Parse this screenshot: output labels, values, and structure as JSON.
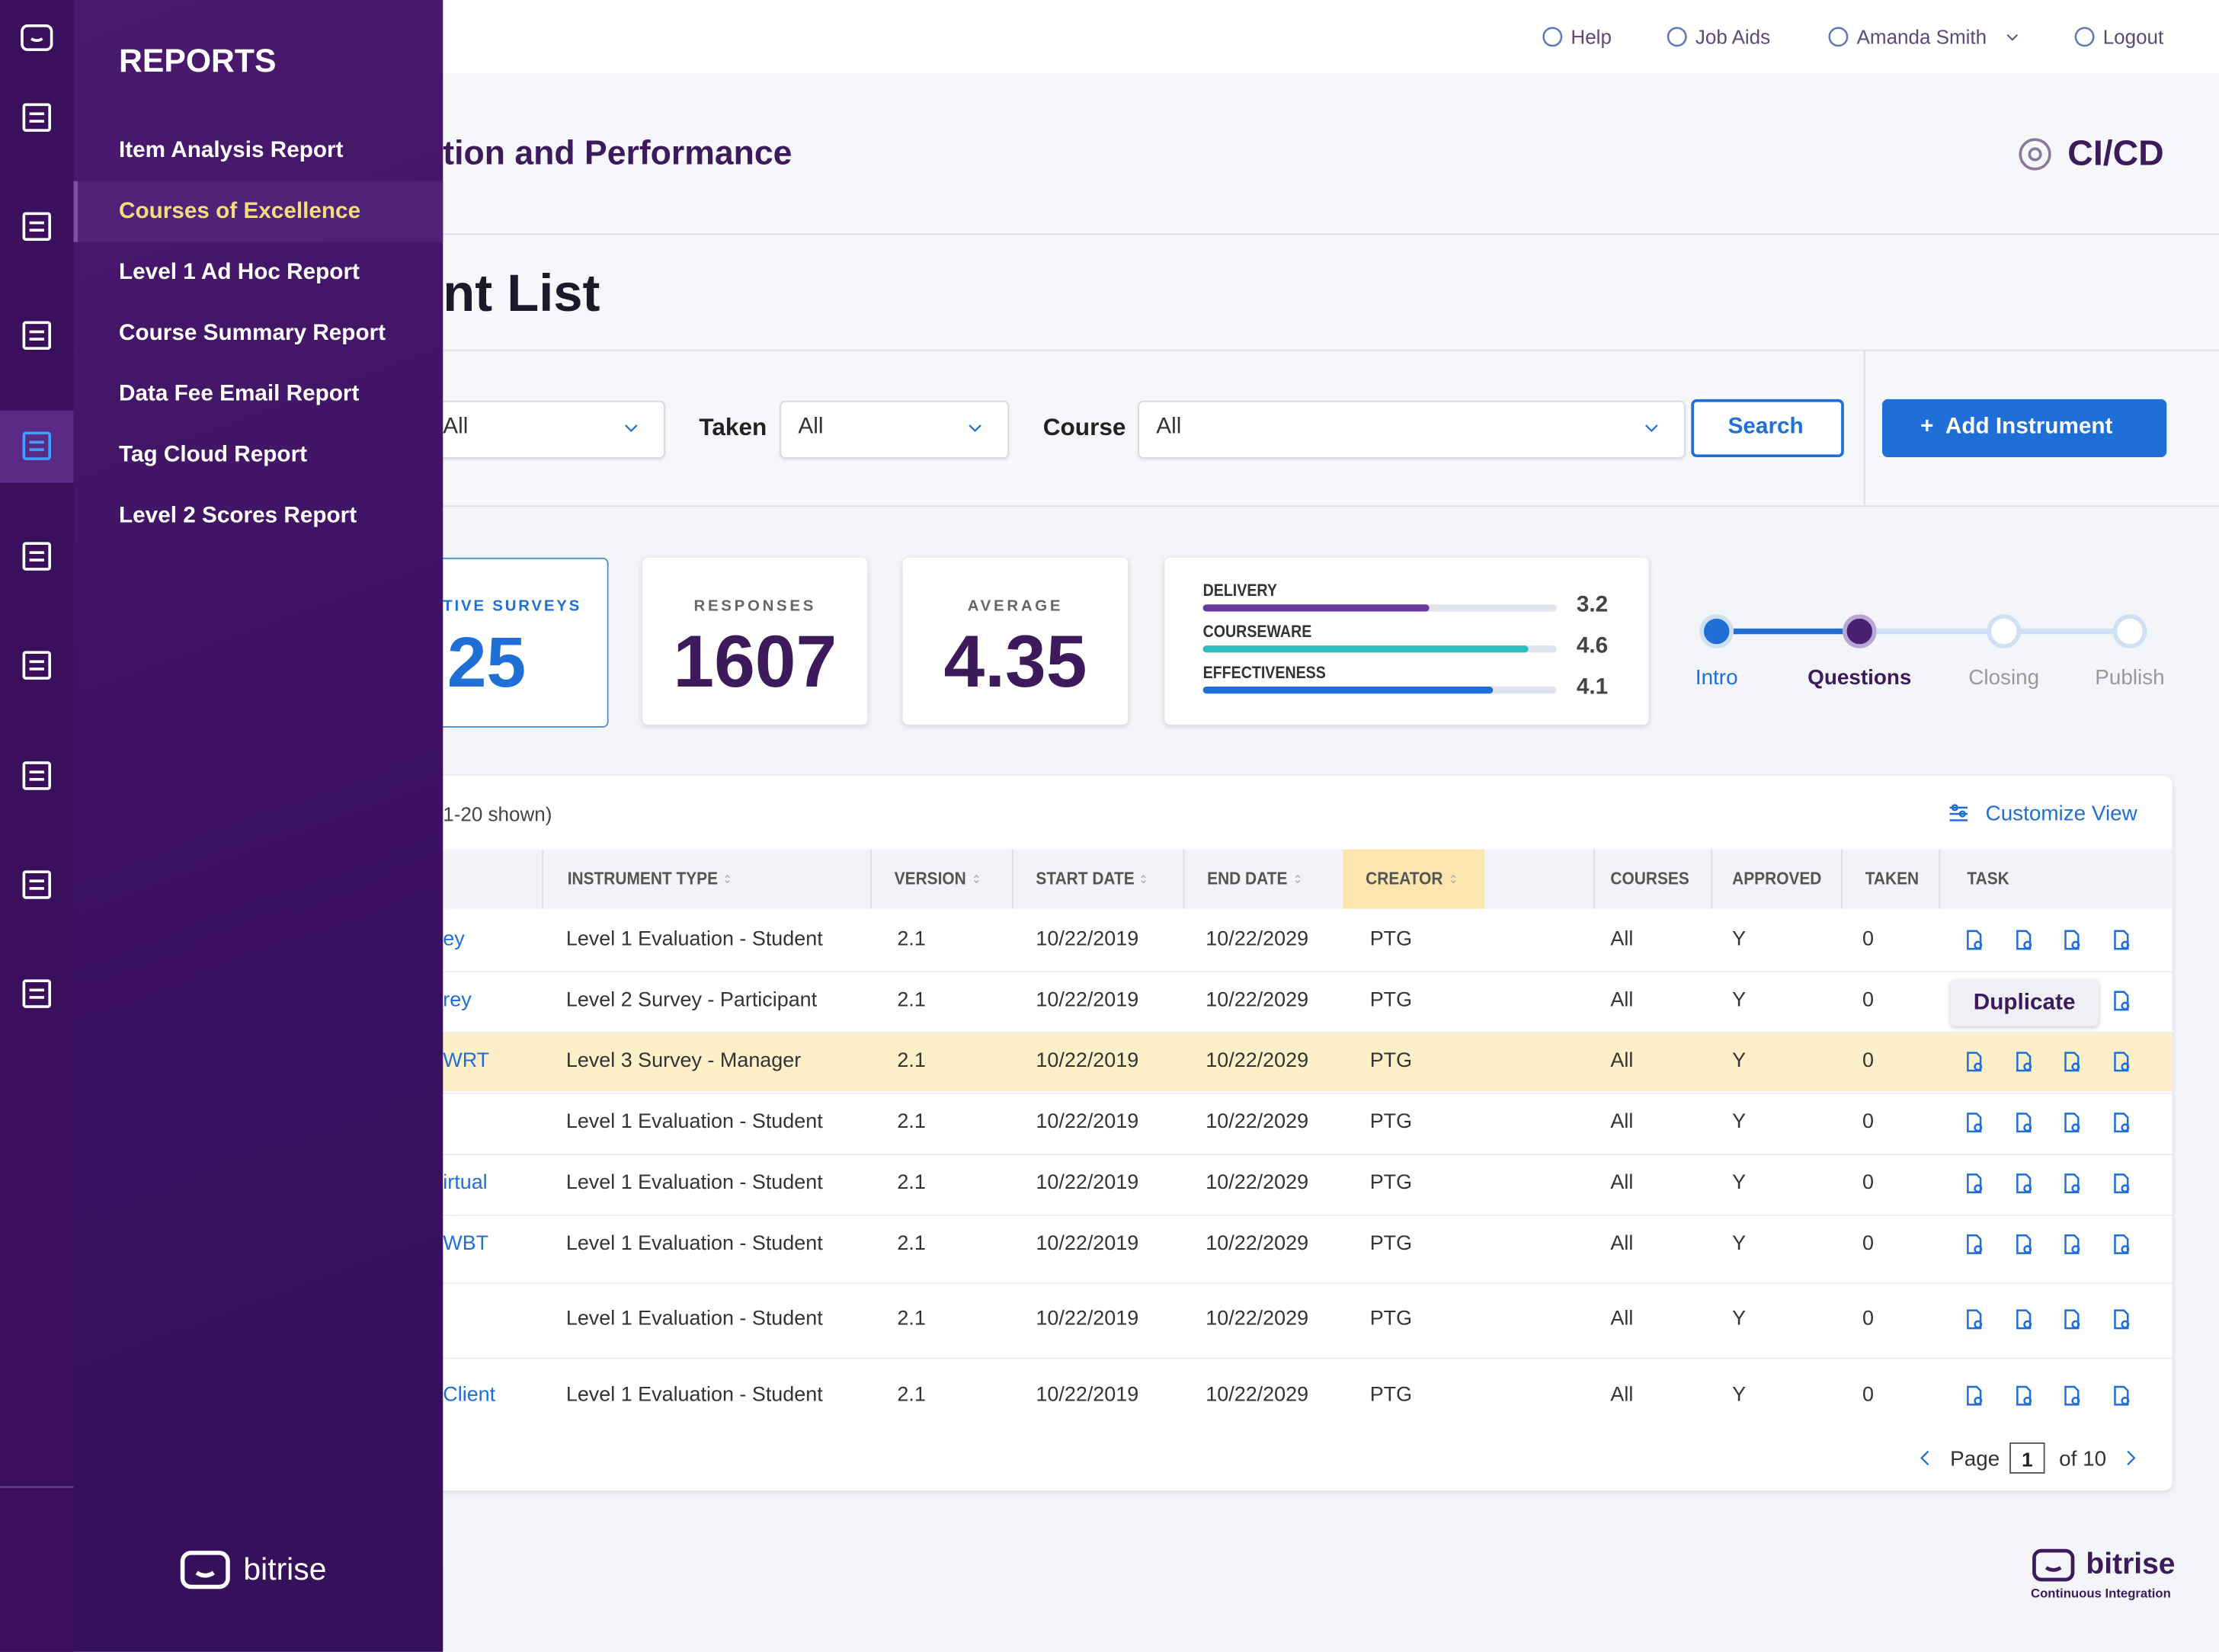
{
  "topbar": {
    "help": "Help",
    "job_aids": "Job Aids",
    "user": "Amanda Smith",
    "logout": "Logout"
  },
  "header": {
    "title": "tion and Performance",
    "brand": "CI/CD"
  },
  "page_title": "nt List",
  "filters": {
    "first_value": "All",
    "taken_label": "Taken",
    "taken_value": "All",
    "course_label": "Course",
    "course_value": "All",
    "search": "Search",
    "add": "+  Add Instrument"
  },
  "stats": {
    "active_label": "TIVE SURVEYS",
    "active_value": "25",
    "responses_label": "RESPONSES",
    "responses_value": "1607",
    "average_label": "AVERAGE",
    "average_value": "4.35"
  },
  "ratings": [
    {
      "name": "DELIVERY",
      "value": 3.2,
      "color": "#6a3a9c"
    },
    {
      "name": "COURSEWARE",
      "value": 4.6,
      "color": "#2bbfc0"
    },
    {
      "name": "EFFECTIVENESS",
      "value": 4.1,
      "color": "#1f6fd6"
    }
  ],
  "stepper": [
    "Intro",
    "Questions",
    "Closing",
    "Publish"
  ],
  "table": {
    "shown": "1-20 shown)",
    "customize": "Customize View",
    "columns": [
      "INSTRUMENT TYPE",
      "VERSION",
      "START DATE",
      "END DATE",
      "CREATOR",
      "COURSES",
      "APPROVED",
      "TAKEN",
      "TASK"
    ],
    "rows": [
      [
        "ey",
        "Level 1 Evaluation - Student",
        "2.1",
        "10/22/2019",
        "10/22/2029",
        "PTG",
        "All",
        "Y",
        "0"
      ],
      [
        "rey",
        "Level 2 Survey - Participant",
        "2.1",
        "10/22/2019",
        "10/22/2029",
        "PTG",
        "All",
        "Y",
        "0"
      ],
      [
        "WRT",
        "Level 3 Survey - Manager",
        "2.1",
        "10/22/2019",
        "10/22/2029",
        "PTG",
        "All",
        "Y",
        "0"
      ],
      [
        "",
        "Level 1 Evaluation - Student",
        "2.1",
        "10/22/2019",
        "10/22/2029",
        "PTG",
        "All",
        "Y",
        "0"
      ],
      [
        "irtual",
        "Level 1 Evaluation - Student",
        "2.1",
        "10/22/2019",
        "10/22/2029",
        "PTG",
        "All",
        "Y",
        "0"
      ],
      [
        "WBT",
        "Level 1 Evaluation - Student",
        "2.1",
        "10/22/2019",
        "10/22/2029",
        "PTG",
        "All",
        "Y",
        "0"
      ],
      [
        "",
        "Level 1 Evaluation - Student",
        "2.1",
        "10/22/2019",
        "10/22/2029",
        "PTG",
        "All",
        "Y",
        "0"
      ],
      [
        "Client",
        "Level 1 Evaluation - Student",
        "2.1",
        "10/22/2019",
        "10/22/2029",
        "PTG",
        "All",
        "Y",
        "0"
      ]
    ],
    "tooltip": "Duplicate",
    "pagination": {
      "page": "Page",
      "current": "1",
      "of": "of 10"
    }
  },
  "sidebar": {
    "heading": "REPORTS",
    "items": [
      "Item Analysis Report",
      "Courses of Excellence",
      "Level 1 Ad Hoc Report",
      "Course Summary Report",
      "Data Fee Email Report",
      "Tag Cloud Report",
      "Level 2 Scores Report"
    ],
    "logo": "bitrise"
  },
  "footer_logo": {
    "name": "bitrise",
    "tagline": "Continuous Integration"
  }
}
